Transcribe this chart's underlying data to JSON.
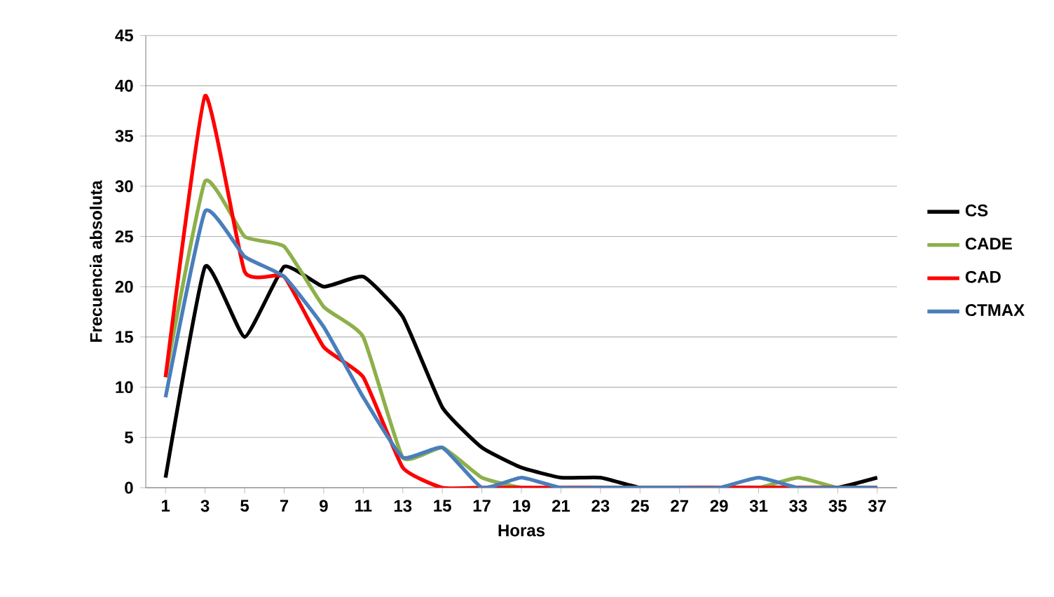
{
  "chart_data": {
    "type": "line",
    "xlabel": "Horas",
    "ylabel": "Frecuencia absoluta",
    "categories": [
      "1",
      "3",
      "5",
      "7",
      "9",
      "11",
      "13",
      "15",
      "17",
      "19",
      "21",
      "23",
      "25",
      "27",
      "29",
      "31",
      "33",
      "35",
      "37"
    ],
    "ylim": [
      0,
      45
    ],
    "yticks": [
      0,
      5,
      10,
      15,
      20,
      25,
      30,
      35,
      40,
      45
    ],
    "grid": "y",
    "legend": "right",
    "marker": "none",
    "line_style": "solid",
    "series": [
      {
        "name": "CS",
        "color": "#000000",
        "values": [
          1,
          22,
          15,
          22,
          20,
          21,
          17,
          8,
          4,
          2,
          1,
          1,
          0,
          0,
          0,
          0,
          0,
          0,
          1
        ]
      },
      {
        "name": "CADE",
        "color": "#8db04a",
        "values": [
          11,
          30.5,
          25,
          24,
          18,
          15,
          3,
          4,
          1,
          0,
          0,
          0,
          0,
          0,
          0,
          0,
          1,
          0,
          0
        ]
      },
      {
        "name": "CAD",
        "color": "#ff0000",
        "values": [
          11,
          39,
          21.5,
          21,
          14,
          11,
          2,
          0,
          0,
          0,
          0,
          0,
          0,
          0,
          0,
          0,
          0,
          0,
          0
        ]
      },
      {
        "name": "CTMAX",
        "color": "#4a7ebb",
        "values": [
          9,
          27.5,
          23,
          21,
          16,
          9,
          3,
          4,
          0,
          1,
          0,
          0,
          0,
          0,
          0,
          1,
          0,
          0,
          0
        ]
      }
    ]
  }
}
